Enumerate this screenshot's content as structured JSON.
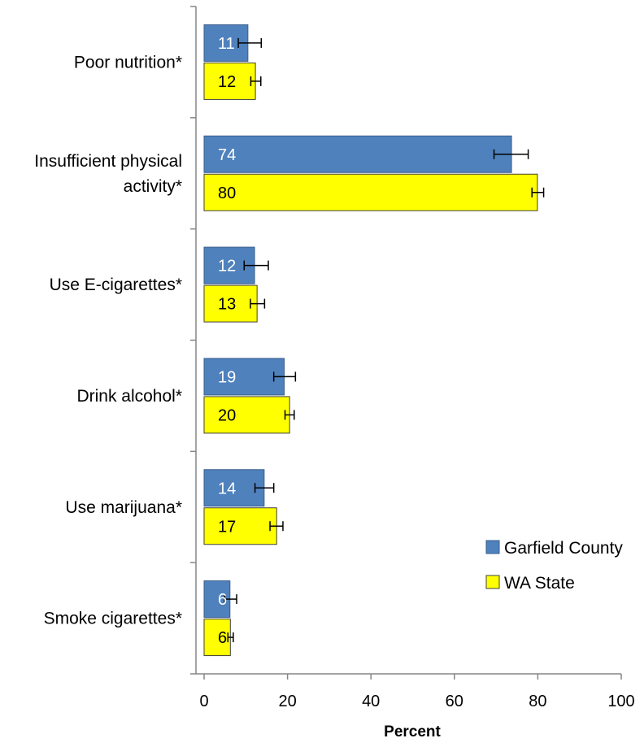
{
  "chart_data": {
    "type": "bar",
    "orientation": "horizontal",
    "categories": [
      "Poor nutrition*",
      "Insufficient physical activity*",
      "Use E-cigarettes*",
      "Drink alcohol*",
      "Use marijuana*",
      "Smoke cigarettes*"
    ],
    "series": [
      {
        "name": "Garfield County",
        "color": "#4F81BD",
        "label_color": "#FFFFFF",
        "values": [
          10.5,
          73.7,
          12.1,
          19.2,
          14.4,
          6.2
        ],
        "labels": [
          "11",
          "74",
          "12",
          "19",
          "14",
          "6"
        ],
        "error_low": [
          8.2,
          69.5,
          9.6,
          16.7,
          12.2,
          4.9
        ],
        "error_high": [
          13.7,
          77.7,
          15.4,
          21.9,
          16.7,
          7.8
        ]
      },
      {
        "name": "WA State",
        "color": "#FFFF00",
        "label_color": "#000000",
        "values": [
          12.3,
          79.9,
          12.7,
          20.5,
          17.4,
          6.3
        ],
        "labels": [
          "12",
          "80",
          "13",
          "20",
          "17",
          "6"
        ],
        "error_low": [
          11.2,
          78.6,
          11.1,
          19.4,
          15.8,
          5.7
        ],
        "error_high": [
          13.6,
          81.4,
          14.5,
          21.6,
          18.9,
          7.0
        ]
      }
    ],
    "xlabel": "Percent",
    "xlim": [
      0,
      100
    ],
    "xticks": [
      0,
      20,
      40,
      60,
      80,
      100
    ],
    "legend_position": "bottom-right",
    "grid": false
  }
}
